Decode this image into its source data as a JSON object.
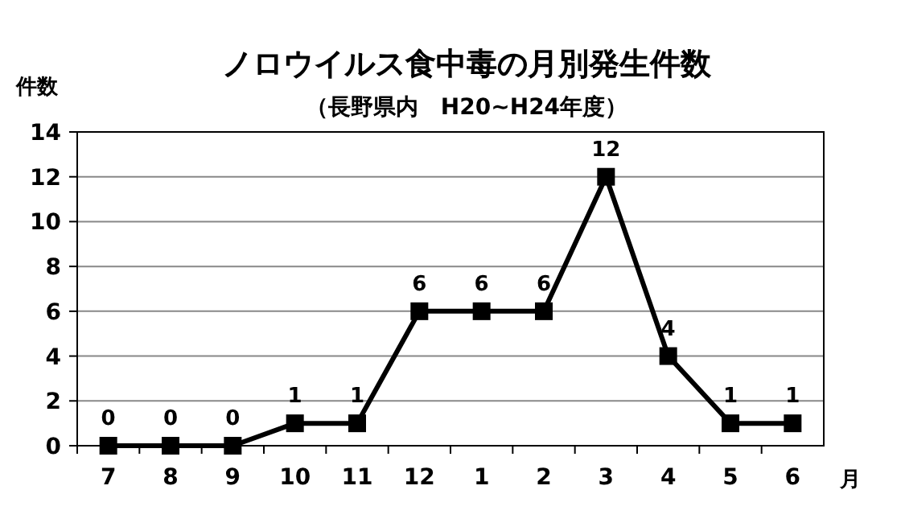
{
  "chart_data": {
    "type": "line",
    "title": "ノロウイルス食中毒の月別発生件数",
    "subtitle": "（長野県内　H20~H24年度）",
    "ylabel": "件数",
    "xlabel": "月",
    "categories": [
      "7",
      "8",
      "9",
      "10",
      "11",
      "12",
      "1",
      "2",
      "3",
      "4",
      "5",
      "6"
    ],
    "series": [
      {
        "color": "#000000",
        "values": [
          0,
          0,
          0,
          1,
          1,
          6,
          6,
          6,
          12,
          4,
          1,
          1
        ]
      }
    ],
    "ylim": [
      0,
      14
    ],
    "yticks": [
      0,
      2,
      4,
      6,
      8,
      10,
      12,
      14
    ],
    "grid": "y",
    "marker": "square",
    "line_style": "solid",
    "data_labels": true
  }
}
